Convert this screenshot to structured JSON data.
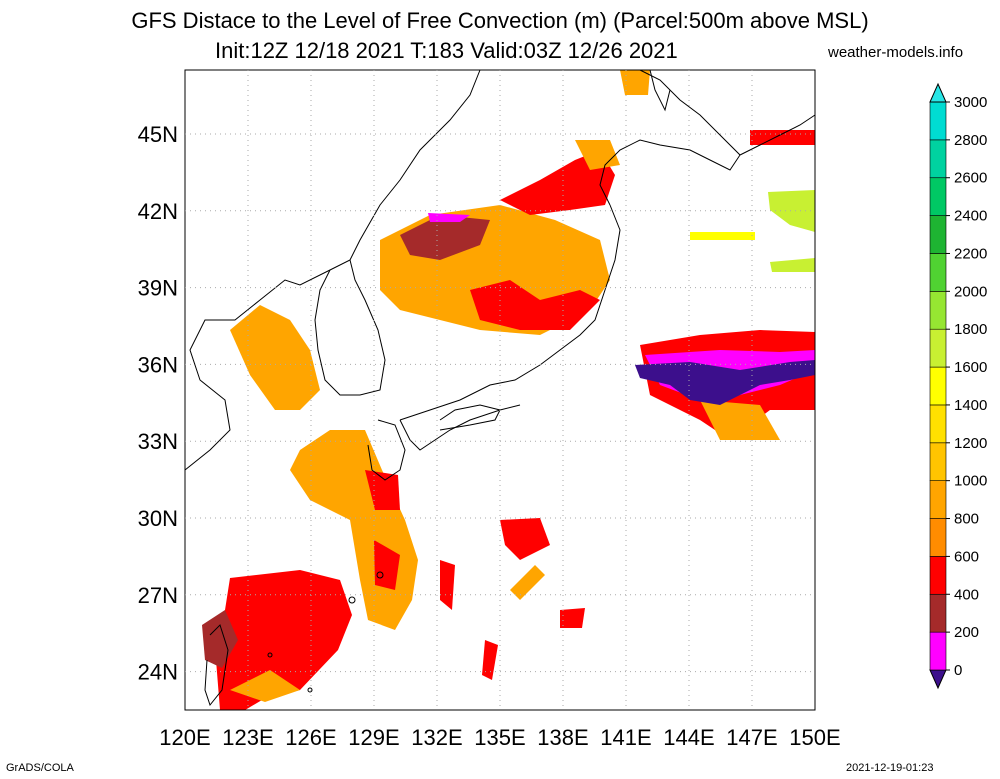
{
  "title": {
    "line1": "GFS Distace to the Level of Free Convection (m) (Parcel:500m above MSL)",
    "line2": "Init:12Z 12/18 2021 T:183 Valid:03Z 12/26 2021",
    "site": "weather-models.info"
  },
  "footer": {
    "left": "GrADS/COLA",
    "right": "2021-12-19-01:23"
  },
  "axes": {
    "lon_labels": [
      "120E",
      "123E",
      "126E",
      "129E",
      "132E",
      "135E",
      "138E",
      "141E",
      "144E",
      "147E",
      "150E"
    ],
    "lat_labels": [
      "24N",
      "27N",
      "30N",
      "33N",
      "36N",
      "39N",
      "42N",
      "45N"
    ],
    "lon_range": [
      120,
      150
    ],
    "lat_range": [
      22.5,
      47.5
    ]
  },
  "colorbar": {
    "levels": [
      "0",
      "200",
      "400",
      "600",
      "800",
      "1000",
      "1200",
      "1400",
      "1600",
      "1800",
      "2000",
      "2200",
      "2400",
      "2600",
      "2800",
      "3000"
    ],
    "colors": [
      "#3c0f8c",
      "#ff00ff",
      "#a52a2a",
      "#ff0000",
      "#ff8c00",
      "#ffa500",
      "#ffc400",
      "#ffe000",
      "#ffff00",
      "#c8f032",
      "#96e632",
      "#50d232",
      "#1eb432",
      "#00c864",
      "#00d2a0",
      "#00dcd2",
      "#28e6e6"
    ]
  },
  "colors": {
    "lfc_low": "#3c0f8c",
    "lfc_200": "#ff00ff",
    "lfc_400": "#a52a2a",
    "lfc_600": "#ff0000",
    "lfc_800": "#ffa500",
    "coast": "#000000",
    "grid": "#aaaaaa"
  }
}
